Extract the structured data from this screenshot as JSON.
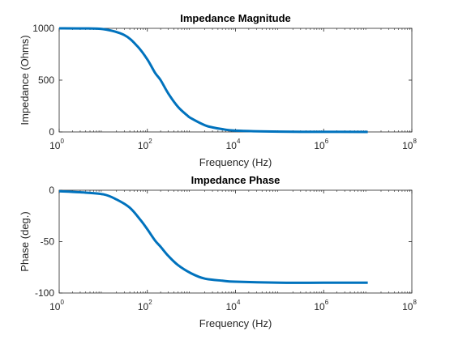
{
  "chart_data": [
    {
      "type": "line",
      "title": "Impedance Magnitude",
      "xlabel": "Frequency (Hz)",
      "ylabel": "Impedance (Ohms)",
      "xscale": "log",
      "xlim": [
        1,
        100000000
      ],
      "ylim": [
        0,
        1000
      ],
      "grid": false,
      "legend": "none",
      "xticks": [
        {
          "base": "10",
          "exp": "0",
          "value": 1
        },
        {
          "base": "10",
          "exp": "2",
          "value": 100
        },
        {
          "base": "10",
          "exp": "4",
          "value": 10000
        },
        {
          "base": "10",
          "exp": "6",
          "value": 1000000
        },
        {
          "base": "10",
          "exp": "8",
          "value": 100000000
        }
      ],
      "yticks": [
        {
          "label": "0",
          "value": 0
        },
        {
          "label": "500",
          "value": 500
        },
        {
          "label": "1000",
          "value": 1000
        }
      ],
      "line_color": "#0072bd",
      "series": [
        {
          "x": [
            1,
            3,
            10,
            30,
            60,
            100,
            150,
            200,
            300,
            500,
            800,
            1000,
            2000,
            3000,
            5000,
            10000,
            100000,
            1000000,
            10000000
          ],
          "y": [
            1000,
            999,
            992,
            935,
            825,
            700,
            570,
            500,
            370,
            240,
            160,
            130,
            65,
            44,
            27,
            13,
            3,
            1,
            0
          ]
        }
      ]
    },
    {
      "type": "line",
      "title": "Impedance Phase",
      "xlabel": "Frequency (Hz)",
      "ylabel": "Phase (deg.)",
      "xscale": "log",
      "xlim": [
        1,
        100000000
      ],
      "ylim": [
        -100,
        0
      ],
      "grid": false,
      "legend": "none",
      "xticks": [
        {
          "base": "10",
          "exp": "0",
          "value": 1
        },
        {
          "base": "10",
          "exp": "2",
          "value": 100
        },
        {
          "base": "10",
          "exp": "4",
          "value": 10000
        },
        {
          "base": "10",
          "exp": "6",
          "value": 1000000
        },
        {
          "base": "10",
          "exp": "8",
          "value": 100000000
        }
      ],
      "yticks": [
        {
          "label": "0",
          "value": 0
        },
        {
          "label": "-50",
          "value": -50
        },
        {
          "label": "-100",
          "value": -100
        }
      ],
      "line_color": "#0072bd",
      "series": [
        {
          "x": [
            1,
            3,
            10,
            20,
            40,
            70,
            100,
            150,
            200,
            300,
            500,
            1000,
            2000,
            5000,
            10000,
            100000,
            1000000,
            10000000
          ],
          "y": [
            -1,
            -2,
            -4,
            -9,
            -17,
            -29,
            -38,
            -49,
            -55,
            -64,
            -73,
            -81,
            -86,
            -88,
            -89,
            -90,
            -90,
            -90
          ]
        }
      ]
    }
  ]
}
